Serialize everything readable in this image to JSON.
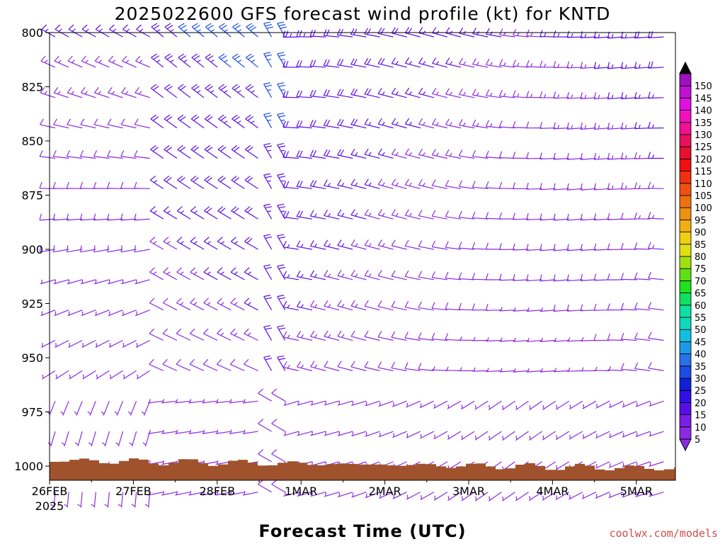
{
  "chart_data": {
    "type": "wind-barb-profile",
    "title": "2025022600 GFS forecast wind profile (kt) for KNTD",
    "xlabel": "Forecast Time (UTC)",
    "ylabel": "",
    "y_levels": [
      800,
      825,
      850,
      875,
      900,
      925,
      950,
      975,
      1000
    ],
    "x_ticks": [
      "26FEB",
      "27FEB",
      "28FEB",
      "1MAR",
      "2MAR",
      "3MAR",
      "4MAR",
      "5MAR"
    ],
    "x_tick_year": "2025",
    "colorbar_ticks": [
      5,
      10,
      15,
      20,
      25,
      30,
      35,
      40,
      45,
      50,
      55,
      60,
      65,
      70,
      75,
      80,
      85,
      90,
      95,
      100,
      105,
      110,
      115,
      120,
      125,
      130,
      135,
      140,
      145,
      150
    ],
    "colorbar_colors": [
      "#8a2be2",
      "#7b1fe6",
      "#5a0ee6",
      "#3010e6",
      "#1020d8",
      "#1a4ce6",
      "#2a70e8",
      "#1a9ae8",
      "#10c0e0",
      "#10d8c0",
      "#10e0a0",
      "#10e060",
      "#20e020",
      "#60e010",
      "#a0e010",
      "#e0e010",
      "#f0d010",
      "#f0b010",
      "#f09010",
      "#f07010",
      "#f05010",
      "#f03010",
      "#f01010",
      "#e81030",
      "#e81060",
      "#f01090",
      "#f010c0",
      "#e010e0",
      "#c010d0",
      "#a010c0"
    ],
    "colorbar_triangle_top": "#000000",
    "colorbar_triangle_bottom": "#8a2be2",
    "pressure_levels_plotted": [
      802,
      816,
      830,
      844,
      858,
      872,
      886,
      900,
      914,
      928,
      942,
      956,
      970,
      984,
      998,
      1012
    ],
    "time_range_days": [
      0,
      8
    ],
    "barb_colors": {
      "light": "#8a2be2",
      "moderate": "#5a0ee6",
      "strong": "#1a4ce6"
    },
    "terrain_color": "#a0522d",
    "credit": "coolwx.com/models"
  }
}
